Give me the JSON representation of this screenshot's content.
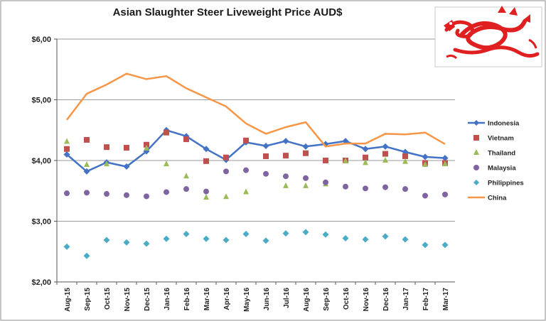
{
  "chart_data": {
    "type": "line",
    "title": "Asian Slaughter Steer Liveweight Price AUD$",
    "xlabel": "",
    "ylabel": "",
    "ylim": [
      2,
      6
    ],
    "yticks": [
      "$2,00",
      "$3,00",
      "$4,00",
      "$5,00",
      "$6,00"
    ],
    "grid": true,
    "legend_position": "right",
    "categories": [
      "Aug-15",
      "Sep-15",
      "Oct-15",
      "Nov-15",
      "Dec-15",
      "Jan-16",
      "Feb-16",
      "Mar-16",
      "Apr-16",
      "May-16",
      "Jun-16",
      "Jul-16",
      "Aug-16",
      "Sep-16",
      "Oct-16",
      "Nov-16",
      "Dec-16",
      "Jan-17",
      "Feb-17",
      "Mar-17"
    ],
    "series": [
      {
        "name": "Indonesia",
        "style": "line-marker",
        "marker": "diamond",
        "color": "#4472C4",
        "values": [
          4.1,
          3.82,
          3.97,
          3.9,
          4.15,
          4.5,
          4.4,
          4.19,
          4.01,
          4.3,
          4.24,
          4.32,
          4.23,
          4.27,
          4.32,
          4.19,
          4.23,
          4.14,
          4.06,
          4.04
        ]
      },
      {
        "name": "Vietnam",
        "style": "marker",
        "marker": "square",
        "color": "#C0504D",
        "values": [
          4.19,
          4.34,
          4.22,
          4.21,
          4.26,
          4.46,
          4.35,
          3.99,
          4.05,
          4.33,
          4.07,
          4.08,
          4.12,
          4.0,
          4.0,
          4.05,
          4.11,
          4.07,
          3.96,
          3.96
        ]
      },
      {
        "name": "Thailand",
        "style": "marker",
        "marker": "triangle",
        "color": "#9BBB59",
        "values": [
          4.31,
          3.93,
          3.94,
          null,
          4.2,
          3.94,
          3.74,
          3.39,
          3.4,
          3.48,
          null,
          3.58,
          3.58,
          3.61,
          3.99,
          3.96,
          4.0,
          3.98,
          3.93,
          3.94
        ]
      },
      {
        "name": "Malaysia",
        "style": "marker",
        "marker": "circle",
        "color": "#8064A2",
        "values": [
          3.46,
          3.47,
          3.45,
          3.43,
          3.41,
          3.48,
          3.53,
          3.49,
          3.82,
          3.84,
          3.78,
          3.74,
          3.71,
          3.64,
          3.57,
          3.54,
          3.56,
          3.53,
          3.42,
          3.44
        ]
      },
      {
        "name": "Philippines",
        "style": "marker",
        "marker": "diamond",
        "color": "#4BACC6",
        "values": [
          2.58,
          2.43,
          2.69,
          2.65,
          2.63,
          2.71,
          2.79,
          2.71,
          2.69,
          2.79,
          2.68,
          2.8,
          2.82,
          2.78,
          2.72,
          2.7,
          2.75,
          2.7,
          2.61,
          2.61
        ]
      },
      {
        "name": "China",
        "style": "line",
        "marker": "none",
        "color": "#F79646",
        "values": [
          4.67,
          5.1,
          5.25,
          5.43,
          5.34,
          5.39,
          5.19,
          5.04,
          4.89,
          4.61,
          4.44,
          4.55,
          4.63,
          4.23,
          4.28,
          4.28,
          4.44,
          4.43,
          4.46,
          4.27
        ]
      }
    ]
  },
  "decoration": {
    "emblem": "dragon-icon",
    "emblem_color": "#E02020"
  }
}
